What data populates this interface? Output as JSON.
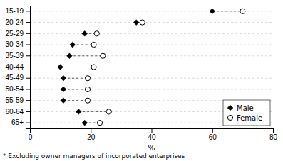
{
  "chart_data": {
    "type": "dumbbell",
    "orientation": "horizontal",
    "categories": [
      "15-19",
      "20-24",
      "25-29",
      "30-34",
      "35-39",
      "40-44",
      "45-49",
      "50-54",
      "55-59",
      "60-64",
      "65+"
    ],
    "series": [
      {
        "name": "Male",
        "color": "#000000",
        "marker": "diamond",
        "values": [
          60,
          35,
          18,
          14,
          13,
          10,
          11,
          11,
          11,
          16,
          18
        ]
      },
      {
        "name": "Female",
        "color": "#000000",
        "marker": "open-circle",
        "values": [
          70,
          37,
          22,
          21,
          24,
          21,
          19,
          19,
          19,
          26,
          23
        ]
      }
    ],
    "xlabel": "%",
    "xlim": [
      0,
      80
    ],
    "xticks": [
      0,
      20,
      40,
      60,
      80
    ],
    "grid": true,
    "legend": "lower right",
    "annotations": [
      "* Excluding owner managers of incorporated enterprises"
    ]
  }
}
